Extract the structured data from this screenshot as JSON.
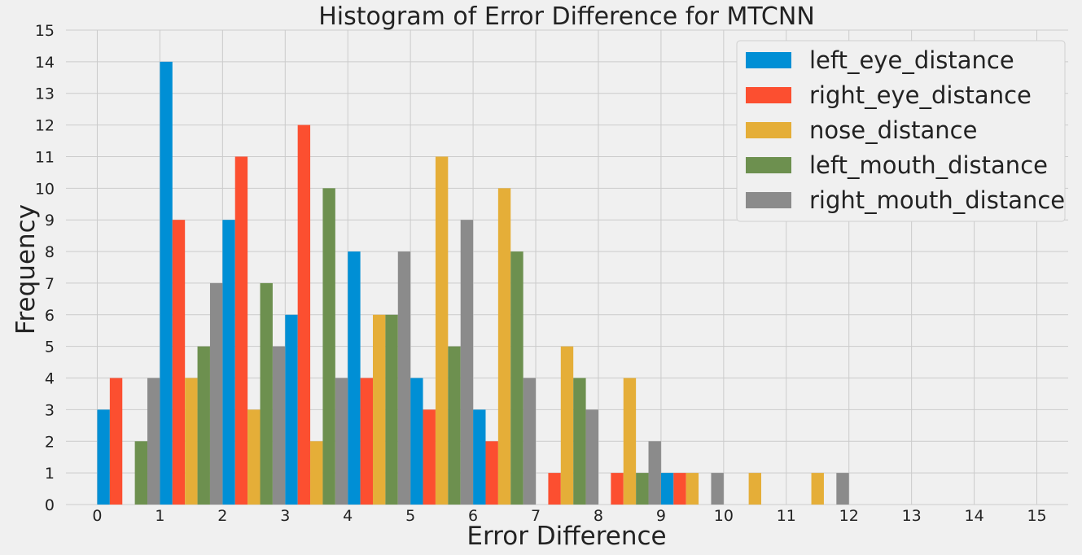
{
  "chart_data": {
    "type": "bar",
    "title": "Histogram of Error Difference for MTCNN",
    "xlabel": "Error Difference",
    "ylabel": "Frequency",
    "xlim": [
      -0.5,
      15.5
    ],
    "ylim": [
      0,
      15
    ],
    "xticks": [
      "0",
      "1",
      "2",
      "3",
      "4",
      "5",
      "6",
      "7",
      "8",
      "9",
      "10",
      "11",
      "12",
      "13",
      "14",
      "15"
    ],
    "yticks": [
      "0",
      "1",
      "2",
      "3",
      "4",
      "5",
      "6",
      "7",
      "8",
      "9",
      "10",
      "11",
      "12",
      "13",
      "14",
      "15"
    ],
    "grid": true,
    "legend_position": "top-right",
    "bins": [
      0,
      1,
      2,
      3,
      4,
      5,
      6,
      7,
      8,
      9,
      10,
      11
    ],
    "series": [
      {
        "name": "left_eye_distance",
        "color": "#008fd5",
        "values": [
          3,
          14,
          9,
          6,
          8,
          4,
          3,
          0,
          0,
          1,
          0,
          0
        ]
      },
      {
        "name": "right_eye_distance",
        "color": "#fc4f30",
        "values": [
          4,
          9,
          11,
          12,
          4,
          3,
          2,
          1,
          1,
          1,
          0,
          0
        ]
      },
      {
        "name": "nose_distance",
        "color": "#e5ae38",
        "values": [
          0,
          4,
          3,
          2,
          6,
          11,
          10,
          5,
          4,
          1,
          1,
          1
        ]
      },
      {
        "name": "left_mouth_distance",
        "color": "#6d904f",
        "values": [
          2,
          5,
          7,
          10,
          6,
          5,
          8,
          4,
          1,
          0,
          0,
          0
        ]
      },
      {
        "name": "right_mouth_distance",
        "color": "#8b8b8b",
        "values": [
          4,
          7,
          5,
          4,
          8,
          9,
          4,
          3,
          2,
          1,
          0,
          1
        ]
      }
    ]
  }
}
